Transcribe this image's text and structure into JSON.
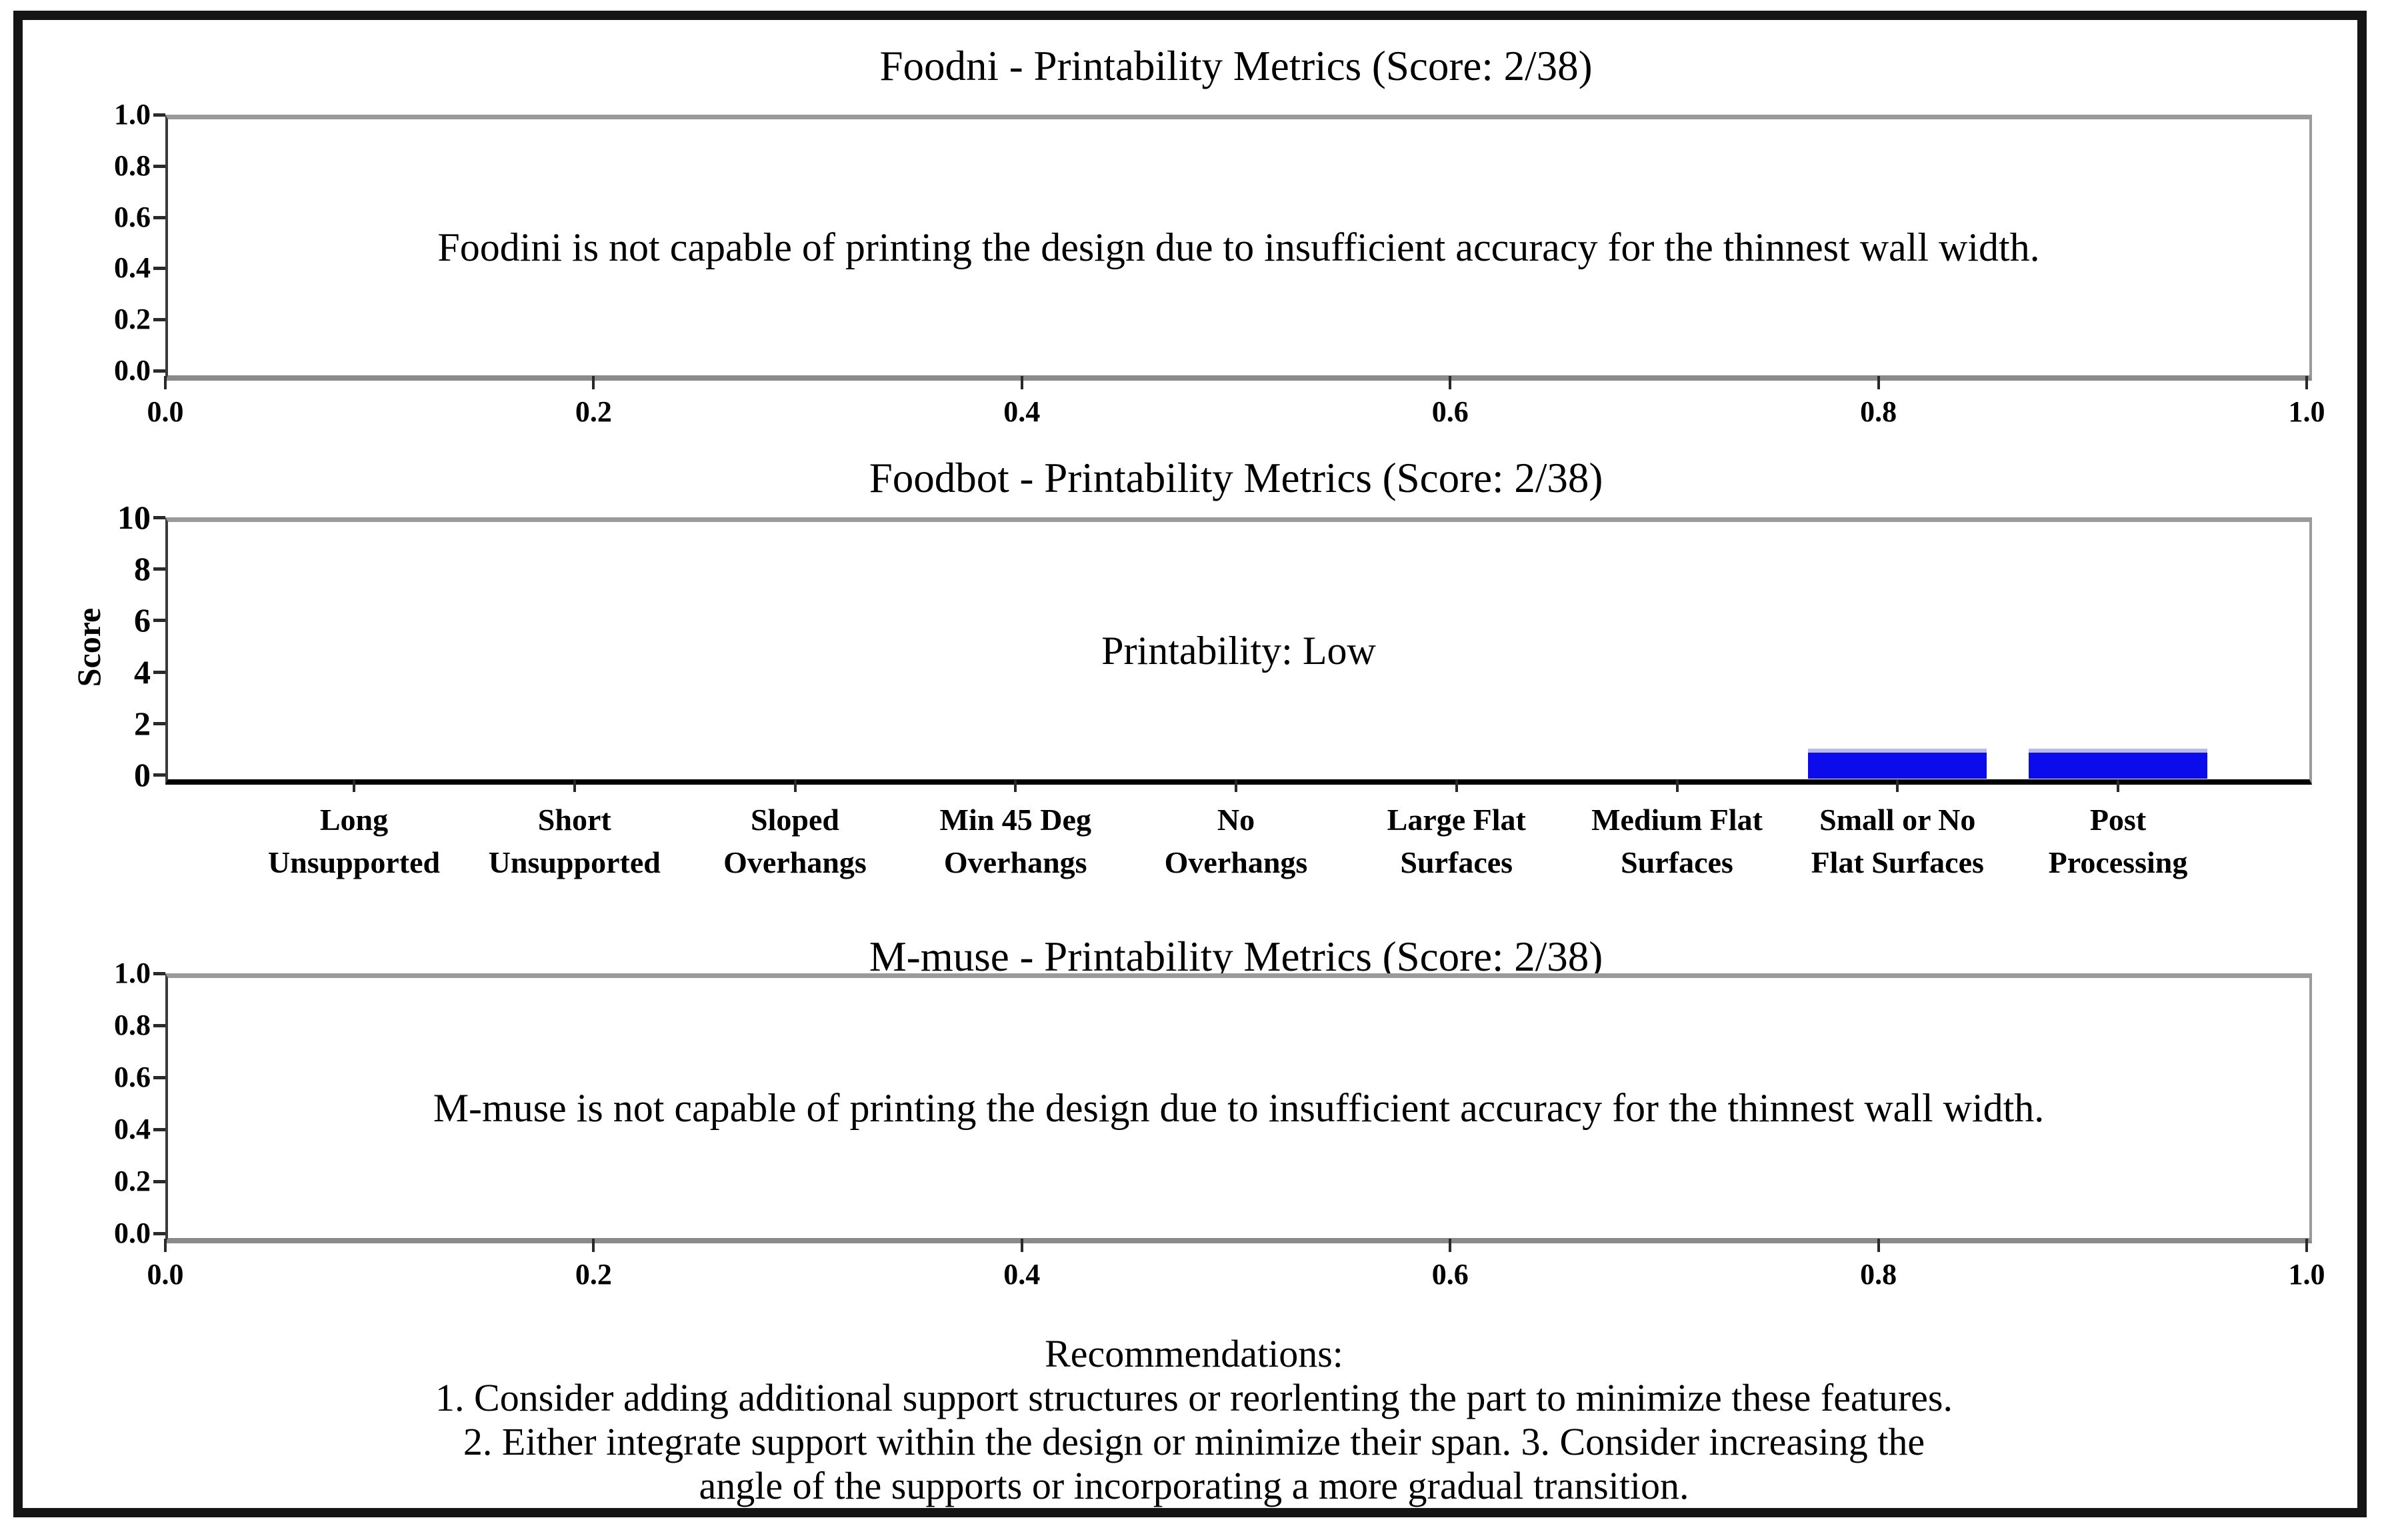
{
  "figure": {
    "background": "#ffffff",
    "border_color": "#151515"
  },
  "chart_data": [
    {
      "type": "message",
      "title": "Foodni - Printability Metrics (Score: 2/38)",
      "message": "Foodini is not capable of printing the design due to insufficient accuracy for the thinnest wall width.",
      "xlabel": "",
      "ylabel": "",
      "xlim": [
        0.0,
        1.0
      ],
      "ylim": [
        0.0,
        1.0
      ],
      "xticks": [
        "0.0",
        "0.2",
        "0.4",
        "0.6",
        "0.8",
        "1.0"
      ],
      "yticks": [
        "1.0",
        "0.8",
        "0.6",
        "0.4",
        "0.2",
        "0.0"
      ],
      "grid": false
    },
    {
      "type": "bar",
      "title": "Foodbot - Printability Metrics (Score: 2/38)",
      "annotation": "Printability: Low",
      "xlabel": "",
      "ylabel": "Score",
      "ylim": [
        0,
        10
      ],
      "yticks": [
        "10",
        "8",
        "6",
        "4",
        "2",
        "0"
      ],
      "categories": [
        [
          "Long",
          "Unsupported"
        ],
        [
          "Short",
          "Unsupported"
        ],
        [
          "Sloped",
          "Overhangs"
        ],
        [
          "Min 45 Deg",
          "Overhangs"
        ],
        [
          "No",
          "Overhangs"
        ],
        [
          "Large Flat",
          "Surfaces"
        ],
        [
          "Medium Flat",
          "Surfaces"
        ],
        [
          "Small or No",
          "Flat Surfaces"
        ],
        [
          "Post",
          "Processing"
        ]
      ],
      "values": [
        0,
        0,
        0,
        0,
        0,
        0,
        0,
        1,
        1
      ],
      "bar_color": "#0b0bec",
      "grid": false,
      "legend": false
    },
    {
      "type": "message",
      "title": "M-muse - Printability Metrics (Score: 2/38)",
      "message": "M-muse is not capable of printing the design due to insufficient accuracy for the thinnest wall width.",
      "xlabel": "",
      "ylabel": "",
      "xlim": [
        0.0,
        1.0
      ],
      "ylim": [
        0.0,
        1.0
      ],
      "xticks": [
        "0.0",
        "0.2",
        "0.4",
        "0.6",
        "0.8",
        "1.0"
      ],
      "yticks": [
        "1.0",
        "0.8",
        "0.6",
        "0.4",
        "0.2",
        "0.0"
      ],
      "grid": false
    }
  ],
  "recommendations": {
    "heading": "Recommendations:",
    "lines": [
      "1. Consider adding additional support structures or reorlenting the part to minimize these features.",
      "2. Either integrate support within the design or minimize their span. 3. Consider increasing the",
      "angle of the supports or incorporating a more gradual transition."
    ]
  }
}
